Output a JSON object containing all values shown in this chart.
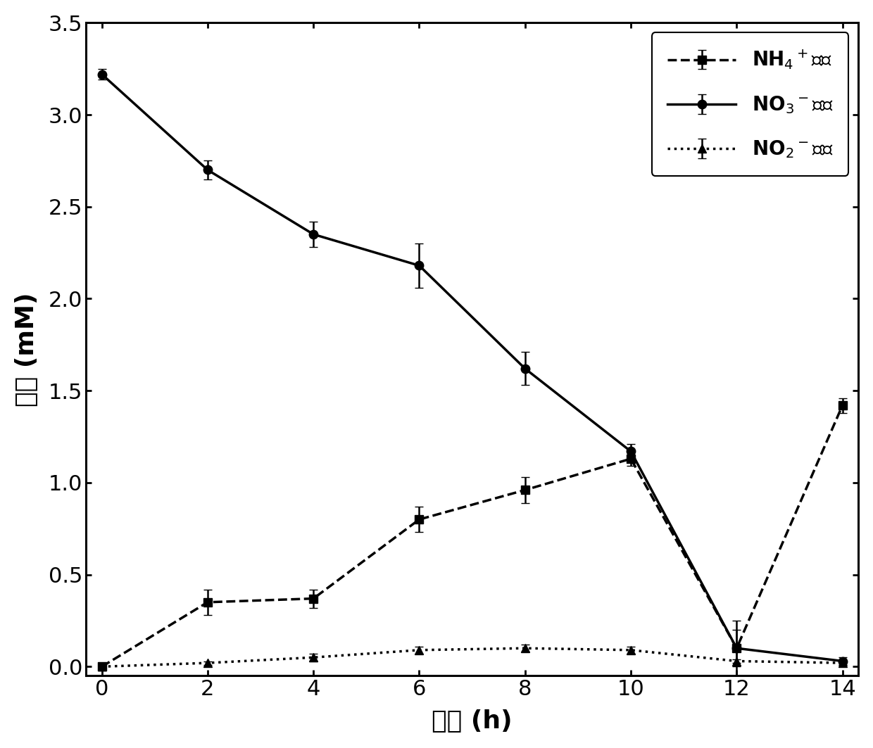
{
  "time": [
    0,
    2,
    4,
    6,
    8,
    10,
    12,
    14
  ],
  "nh4_y": [
    0.0,
    0.35,
    0.37,
    0.8,
    0.96,
    1.13,
    0.1,
    1.42
  ],
  "nh4_yerr": [
    0.02,
    0.07,
    0.05,
    0.07,
    0.07,
    0.04,
    0.15,
    0.04
  ],
  "no3_y": [
    3.22,
    2.7,
    2.35,
    2.18,
    1.62,
    1.17,
    0.1,
    0.03
  ],
  "no3_yerr": [
    0.03,
    0.05,
    0.07,
    0.12,
    0.09,
    0.04,
    0.1,
    0.02
  ],
  "no2_y": [
    0.0,
    0.02,
    0.05,
    0.09,
    0.1,
    0.09,
    0.03,
    0.02
  ],
  "no2_yerr": [
    0.01,
    0.01,
    0.02,
    0.02,
    0.02,
    0.02,
    0.01,
    0.01
  ],
  "xlabel": "时间 (h)",
  "ylabel": "浓度 (mM)",
  "xlim": [
    -0.3,
    14.3
  ],
  "ylim": [
    -0.05,
    3.5
  ],
  "xticks": [
    0,
    2,
    4,
    6,
    8,
    10,
    12,
    14
  ],
  "yticks": [
    0.0,
    0.5,
    1.0,
    1.5,
    2.0,
    2.5,
    3.0,
    3.5
  ],
  "color": "#000000",
  "bg_color": "#ffffff",
  "linewidth": 2.5,
  "markersize": 9,
  "capsize": 4,
  "elinewidth": 1.8
}
